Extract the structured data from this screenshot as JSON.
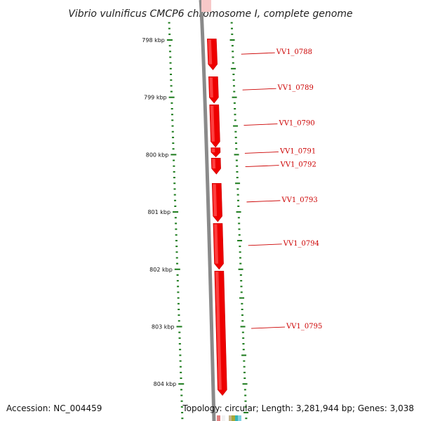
{
  "title": "Vibrio vulnificus CMCP6 chromosome I, complete genome",
  "accession_label": "Accession: NC_004459",
  "topology_label": "Topology: circular; Length: 3,281,944 bp; Genes: 3,038",
  "scale_unit": "kbp",
  "ticks": [
    {
      "kbp": 798,
      "label": "798 kbp"
    },
    {
      "kbp": 799,
      "label": "799 kbp"
    },
    {
      "kbp": 800,
      "label": "800 kbp"
    },
    {
      "kbp": 801,
      "label": "801 kbp"
    },
    {
      "kbp": 802,
      "label": "802 kbp"
    },
    {
      "kbp": 803,
      "label": "803 kbp"
    },
    {
      "kbp": 804,
      "label": "804 kbp"
    }
  ],
  "genes": [
    {
      "name": "VV1_0788",
      "start_kbp": 797.98,
      "end_kbp": 798.52
    },
    {
      "name": "VV1_0789",
      "start_kbp": 798.64,
      "end_kbp": 799.1
    },
    {
      "name": "VV1_0790",
      "start_kbp": 799.13,
      "end_kbp": 799.87
    },
    {
      "name": "VV1_0791",
      "start_kbp": 799.88,
      "end_kbp": 800.04
    },
    {
      "name": "VV1_0792",
      "start_kbp": 800.06,
      "end_kbp": 800.34
    },
    {
      "name": "VV1_0793",
      "start_kbp": 800.5,
      "end_kbp": 801.17
    },
    {
      "name": "VV1_0794",
      "start_kbp": 801.2,
      "end_kbp": 802.0
    },
    {
      "name": "VV1_0795",
      "start_kbp": 802.03,
      "end_kbp": 804.2
    }
  ],
  "colors": {
    "gene": "#ee0000",
    "gene_highlight": "#ff4a4a",
    "gene_shadow": "#c80000",
    "backbone": "#8a8a8a",
    "ticks": "#1a7a1a",
    "label": "#cc0000"
  }
}
